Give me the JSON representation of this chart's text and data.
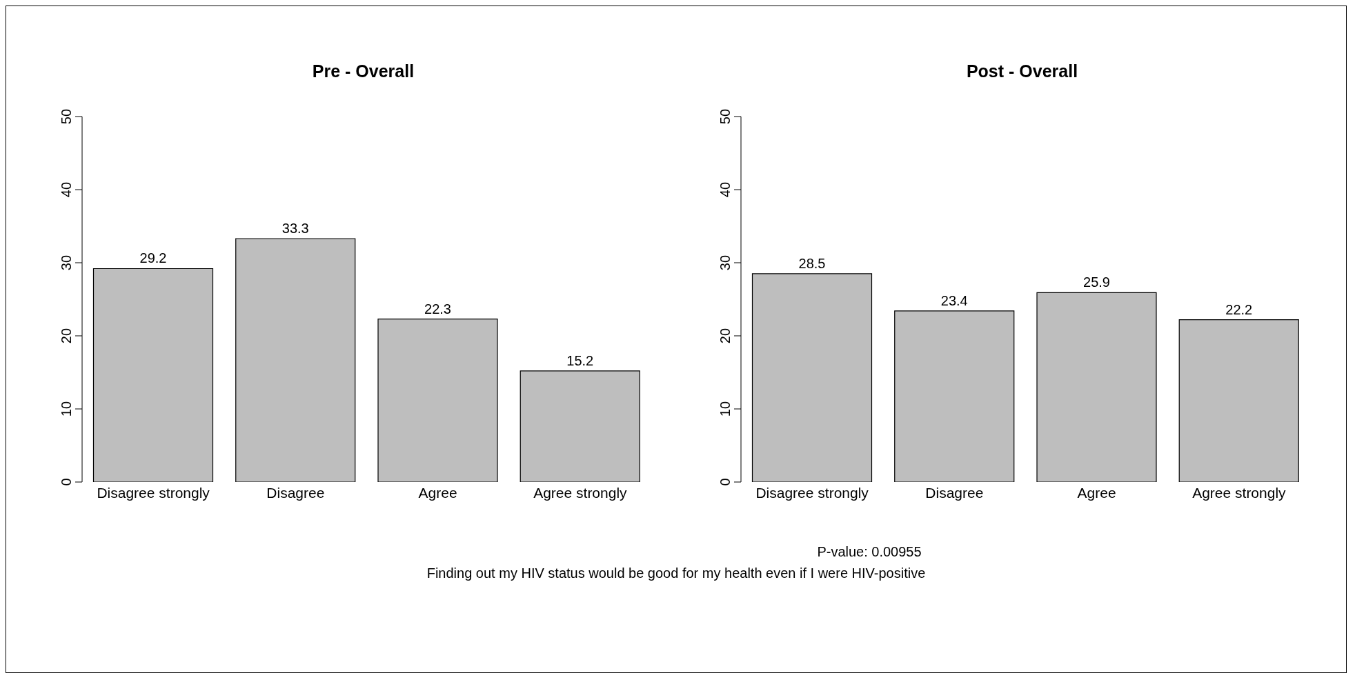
{
  "chart_data": [
    {
      "type": "bar",
      "title": "Pre - Overall",
      "categories": [
        "Disagree strongly",
        "Disagree",
        "Agree",
        "Agree strongly"
      ],
      "values": [
        29.2,
        33.3,
        22.3,
        15.2
      ],
      "color": "#bebebe",
      "ylim": [
        0,
        50
      ],
      "yticks": [
        0,
        10,
        20,
        30,
        40,
        50
      ],
      "data_labels": true
    },
    {
      "type": "bar",
      "title": "Post - Overall",
      "categories": [
        "Disagree strongly",
        "Disagree",
        "Agree",
        "Agree strongly"
      ],
      "values": [
        28.5,
        23.4,
        25.9,
        22.2
      ],
      "color": "#bebebe",
      "ylim": [
        0,
        50
      ],
      "yticks": [
        0,
        10,
        20,
        30,
        40,
        50
      ],
      "data_labels": true,
      "annotations": [
        "P-value: 0.00955",
        "Finding out my HIV status would be good for my health even if I were HIV-positive"
      ]
    }
  ]
}
